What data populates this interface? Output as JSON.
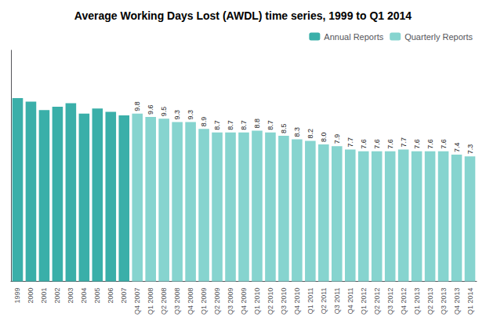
{
  "chart_data": {
    "type": "bar",
    "title": "Average Working Days Lost (AWDL) time series, 1999 to Q1 2014",
    "categories": [
      "1999",
      "2000",
      "2001",
      "2002",
      "2003",
      "2004",
      "2005",
      "2006",
      "2007",
      "Q4 2007",
      "Q1 2008",
      "Q2 2008",
      "Q3 2008",
      "Q4 2008",
      "Q1 2009",
      "Q2 2009",
      "Q3 2009",
      "Q4 2009",
      "Q1 2010",
      "Q2 2010",
      "Q3 2010",
      "Q4 2010",
      "Q1 2011",
      "Q2 2011",
      "Q3 2011",
      "Q4 2011",
      "Q1 2012",
      "Q2 2012",
      "Q3 2012",
      "Q4 2012",
      "Q1 2013",
      "Q2 2013",
      "Q3 2013",
      "Q4 2013",
      "Q1 2014"
    ],
    "series": [
      {
        "name": "Annual Reports",
        "color": "#3aafa9",
        "data_labels": false,
        "values": [
          10.7,
          10.5,
          10.0,
          10.2,
          10.4,
          9.8,
          10.1,
          9.9,
          9.7,
          null,
          null,
          null,
          null,
          null,
          null,
          null,
          null,
          null,
          null,
          null,
          null,
          null,
          null,
          null,
          null,
          null,
          null,
          null,
          null,
          null,
          null,
          null,
          null,
          null,
          null
        ]
      },
      {
        "name": "Quarterly Reports",
        "color": "#86d4cf",
        "data_labels": true,
        "values": [
          null,
          null,
          null,
          null,
          null,
          null,
          null,
          null,
          null,
          9.8,
          9.6,
          9.5,
          9.3,
          9.3,
          8.9,
          8.7,
          8.7,
          8.7,
          8.8,
          8.7,
          8.5,
          8.3,
          8.2,
          8.0,
          7.9,
          7.7,
          7.6,
          7.6,
          7.6,
          7.7,
          7.6,
          7.6,
          7.6,
          7.4,
          7.3
        ],
        "value_labels": [
          null,
          null,
          null,
          null,
          null,
          null,
          null,
          null,
          null,
          "9.8",
          "9.6",
          "9.5",
          "9.3",
          "9.3",
          "8.9",
          "8.7",
          "8.7",
          "8.7",
          "8.8",
          "8.7",
          "8.5",
          "8.3",
          "8.2",
          "8.0",
          "7.9",
          "7.7",
          "7.6",
          "7.6",
          "7.6",
          "7.7",
          "7.6",
          "7.6",
          "7.6",
          "7.4",
          "7.3"
        ]
      }
    ],
    "ylim": [
      0,
      13.5
    ],
    "yticks": [],
    "grid": false,
    "legend": "upper right",
    "tick_labels": "x"
  }
}
